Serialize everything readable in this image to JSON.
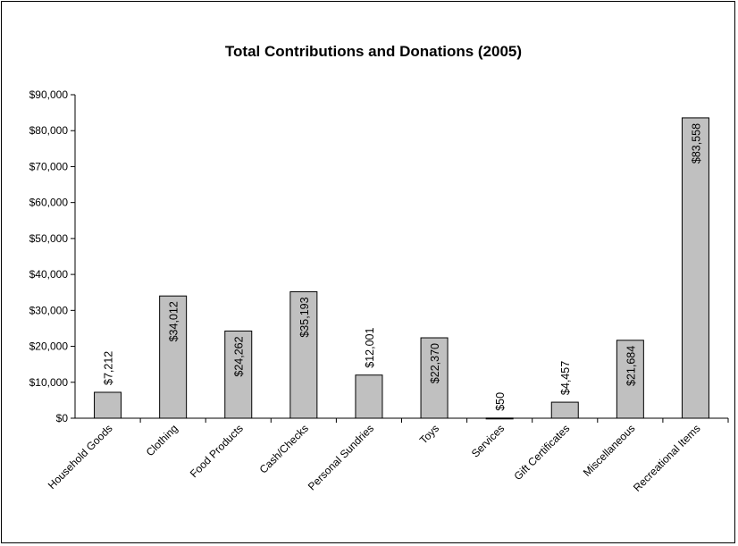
{
  "chart_data": {
    "type": "bar",
    "title": "Total Contributions and Donations (2005)",
    "xlabel": "",
    "ylabel": "",
    "ylim": [
      0,
      90000
    ],
    "ytick_step": 10000,
    "ytick_labels": [
      "$0",
      "$10,000",
      "$20,000",
      "$30,000",
      "$40,000",
      "$50,000",
      "$60,000",
      "$70,000",
      "$80,000",
      "$90,000"
    ],
    "categories": [
      "Household Goods",
      "Clothing",
      "Food Products",
      "Cash/Checks",
      "Personal Sundries",
      "Toys",
      "Services",
      "Gift Certificates",
      "Miscellaneous",
      "Recreational Items"
    ],
    "values": [
      7212,
      34012,
      24262,
      35193,
      12001,
      22370,
      50,
      4457,
      21684,
      83558
    ],
    "data_labels": [
      "$7,212",
      "$34,012",
      "$24,262",
      "$35,193",
      "$12,001",
      "$22,370",
      "$50",
      "$4,457",
      "$21,684",
      "$83,558"
    ],
    "bar_color": "#c0c0c0",
    "grid": false,
    "legend": "none"
  }
}
